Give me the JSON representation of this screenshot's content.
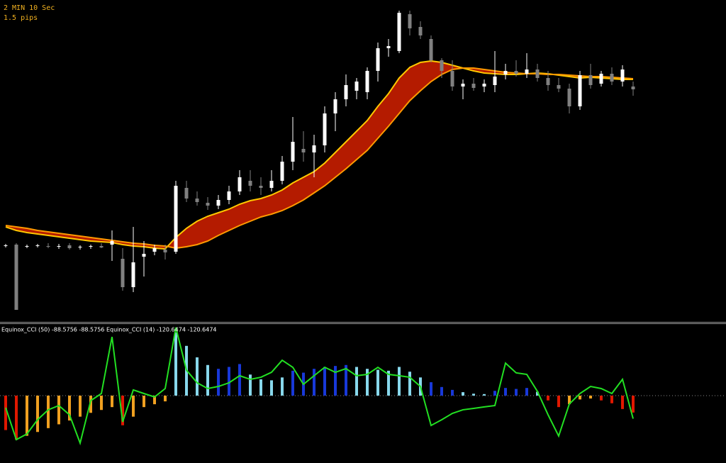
{
  "chart_data": [
    {
      "type": "candlestick",
      "annotations": [
        "2 MIN 10 Sec",
        "1.5 pips"
      ],
      "ylim": [
        0,
        453
      ],
      "up_color": "#ffffff",
      "down_color": "#808080",
      "open": [
        106,
        108,
        105,
        106,
        106,
        105,
        107,
        104,
        105,
        106,
        108,
        88,
        48,
        91,
        98,
        101,
        98,
        188,
        173,
        167,
        163,
        171,
        183,
        198,
        191,
        188,
        198,
        225,
        243,
        238,
        248,
        293,
        313,
        325,
        323,
        353,
        385,
        381,
        433,
        415,
        398,
        368,
        353,
        331,
        335,
        331,
        333,
        348,
        353,
        349,
        355,
        343,
        333,
        328,
        303,
        347,
        335,
        349,
        338,
        331
      ],
      "high": [
        109,
        110,
        108,
        109,
        110,
        109,
        110,
        107,
        108,
        110,
        128,
        103,
        133,
        113,
        108,
        108,
        198,
        198,
        183,
        175,
        178,
        191,
        213,
        213,
        203,
        213,
        233,
        288,
        268,
        263,
        303,
        323,
        348,
        343,
        358,
        393,
        398,
        438,
        438,
        423,
        403,
        371,
        368,
        341,
        343,
        341,
        381,
        363,
        368,
        378,
        363,
        353,
        343,
        335,
        353,
        363,
        353,
        358,
        361,
        338
      ],
      "low": [
        104,
        16,
        103,
        104,
        103,
        102,
        101,
        101,
        102,
        103,
        85,
        43,
        41,
        63,
        93,
        87,
        95,
        168,
        163,
        157,
        158,
        165,
        178,
        183,
        178,
        183,
        193,
        213,
        225,
        203,
        238,
        268,
        303,
        313,
        313,
        338,
        373,
        378,
        403,
        398,
        365,
        343,
        325,
        313,
        325,
        323,
        323,
        341,
        345,
        343,
        338,
        325,
        323,
        293,
        298,
        328,
        331,
        333,
        331,
        318
      ],
      "close": [
        107,
        16,
        106,
        107,
        105,
        106,
        103,
        105,
        106,
        104,
        113,
        48,
        83,
        95,
        103,
        97,
        191,
        173,
        168,
        163,
        171,
        183,
        203,
        191,
        188,
        198,
        225,
        253,
        238,
        248,
        293,
        313,
        333,
        338,
        353,
        385,
        388,
        435,
        413,
        403,
        368,
        353,
        331,
        335,
        329,
        335,
        345,
        353,
        349,
        355,
        343,
        333,
        328,
        303,
        347,
        333,
        349,
        338,
        355,
        327
      ],
      "ribbon_fill": "#d42000",
      "ribbon": [
        {
          "color": "#ffc800",
          "values": [
            133,
            128,
            125,
            123,
            121,
            119,
            117,
            115,
            113,
            112,
            111,
            108,
            106,
            105,
            103,
            102,
            118,
            131,
            141,
            148,
            153,
            158,
            165,
            170,
            173,
            178,
            185,
            195,
            203,
            211,
            223,
            238,
            253,
            268,
            283,
            303,
            321,
            343,
            358,
            365,
            367,
            365,
            361,
            357,
            353,
            350,
            349,
            348,
            348,
            349,
            350,
            349,
            347,
            345,
            343,
            344,
            343,
            342,
            341,
            341
          ]
        },
        {
          "color": "#ff9a00",
          "values": [
            135,
            133,
            131,
            128,
            126,
            124,
            122,
            120,
            118,
            116,
            114,
            112,
            110,
            109,
            107,
            106,
            103,
            105,
            108,
            113,
            121,
            128,
            135,
            141,
            147,
            151,
            156,
            163,
            171,
            181,
            191,
            203,
            215,
            228,
            241,
            258,
            275,
            293,
            311,
            325,
            338,
            348,
            355,
            357,
            357,
            355,
            353,
            351,
            350,
            349,
            349,
            348,
            348,
            347,
            346,
            345,
            345,
            344,
            343,
            342
          ]
        }
      ]
    },
    {
      "type": "bar",
      "title": "Equinox_CCI (50) -88.5756 -88.5756  Equinox_CCI (14) -120.6474 -120.6474",
      "ylim": [
        -341,
        363
      ],
      "zero_line": true,
      "series": [
        {
          "type": "bar",
          "colors": [
            "#e01800",
            "#e01800",
            "#f0a020",
            "#f0a020",
            "#f0a020",
            "#f0a020",
            "#f0a020",
            "#f0a020",
            "#f0a020",
            "#f0a020",
            "#f0a020",
            "#e01800",
            "#f0a020",
            "#f0a020",
            "#f0a020",
            "#f0a020",
            "#88d8ec",
            "#88d8ec",
            "#88d8ec",
            "#88d8ec",
            "#1838d8",
            "#1838d8",
            "#1838d8",
            "#88d8ec",
            "#88d8ec",
            "#88d8ec",
            "#88d8ec",
            "#1838d8",
            "#1838d8",
            "#1838d8",
            "#1838d8",
            "#1838d8",
            "#1838d8",
            "#88d8ec",
            "#88d8ec",
            "#88d8ec",
            "#88d8ec",
            "#88d8ec",
            "#88d8ec",
            "#88d8ec",
            "#1838d8",
            "#1838d8",
            "#1838d8",
            "#88d8ec",
            "#88d8ec",
            "#88d8ec",
            "#1838d8",
            "#1838d8",
            "#1838d8",
            "#1838d8",
            "#88d8ec",
            "#e01800",
            "#e01800",
            "#f0a020",
            "#f0a020",
            "#f0a020",
            "#e01800",
            "#e01800",
            "#e01800",
            "#e01800"
          ],
          "values": [
            -180,
            -230,
            -210,
            -190,
            -170,
            -150,
            -130,
            -110,
            -90,
            -75,
            -60,
            -155,
            -110,
            -60,
            -45,
            -30,
            330,
            260,
            200,
            160,
            140,
            150,
            165,
            110,
            85,
            80,
            95,
            130,
            120,
            140,
            150,
            155,
            160,
            150,
            140,
            135,
            130,
            150,
            125,
            95,
            70,
            45,
            30,
            18,
            10,
            8,
            25,
            40,
            35,
            40,
            20,
            -25,
            -60,
            -45,
            -20,
            -15,
            -25,
            -40,
            -70,
            -88.5756
          ]
        },
        {
          "type": "line",
          "color": "#22e022",
          "values": [
            -63,
            -230,
            -200,
            -126,
            -74,
            -52,
            -100,
            -248,
            -26,
            11,
            307,
            -137,
            30,
            11,
            -7,
            37,
            356,
            133,
            67,
            37,
            48,
            67,
            104,
            85,
            96,
            122,
            185,
            148,
            59,
            104,
            148,
            122,
            141,
            104,
            111,
            148,
            111,
            104,
            96,
            48,
            -156,
            -126,
            -93,
            -74,
            -67,
            -59,
            -52,
            170,
            119,
            111,
            22,
            -100,
            -211,
            -44,
            11,
            48,
            37,
            11,
            85,
            -120.6474
          ]
        }
      ]
    }
  ]
}
